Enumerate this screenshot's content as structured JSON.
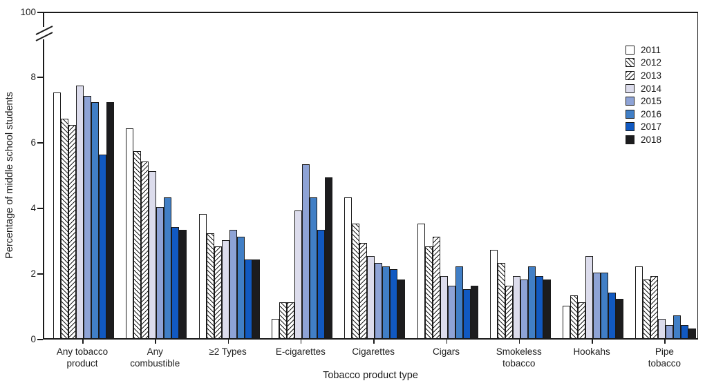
{
  "chart_data": {
    "type": "bar",
    "title": "",
    "xlabel": "Tobacco product type",
    "ylabel": "Percentage of middle school students",
    "grid": false,
    "legend_position": "upper-right-inside",
    "axis_break": true,
    "yticks": [
      "0",
      "2",
      "4",
      "6",
      "8"
    ],
    "ytick_above_break": "100",
    "ylim": [
      0,
      8
    ],
    "categories": [
      "Any tobacco product",
      "Any combustible",
      "≥2 Types",
      "E-cigarettes",
      "Cigarettes",
      "Cigars",
      "Smokeless tobacco",
      "Hookahs",
      "Pipe tobacco"
    ],
    "categories_display": [
      "Any tobacco\nproduct",
      "Any\ncombustible",
      "≥2 Types",
      "E-cigarettes",
      "Cigarettes",
      "Cigars",
      "Smokeless\ntobacco",
      "Hookahs",
      "Pipe\ntobacco"
    ],
    "series": [
      {
        "name": "2011",
        "fill": "#ffffff",
        "pattern": "none",
        "values": [
          7.5,
          6.4,
          3.8,
          0.6,
          4.3,
          3.5,
          2.7,
          1.0,
          2.2
        ]
      },
      {
        "name": "2012",
        "fill": "#ffffff",
        "pattern": "diag-forward",
        "values": [
          6.7,
          5.7,
          3.2,
          1.1,
          3.5,
          2.8,
          2.3,
          1.3,
          1.8
        ]
      },
      {
        "name": "2013",
        "fill": "#ffffff",
        "pattern": "diag-back",
        "values": [
          6.5,
          5.4,
          2.8,
          1.1,
          2.9,
          3.1,
          1.6,
          1.1,
          1.9
        ]
      },
      {
        "name": "2014",
        "fill": "#dcdcec",
        "pattern": "none",
        "values": [
          7.7,
          5.1,
          3.0,
          3.9,
          2.5,
          1.9,
          1.9,
          2.5,
          0.6
        ]
      },
      {
        "name": "2015",
        "fill": "#8ea3d6",
        "pattern": "none",
        "values": [
          7.4,
          4.0,
          3.3,
          5.3,
          2.3,
          1.6,
          1.8,
          2.0,
          0.4
        ]
      },
      {
        "name": "2016",
        "fill": "#417fc6",
        "pattern": "none",
        "values": [
          7.2,
          4.3,
          3.1,
          4.3,
          2.2,
          2.2,
          2.2,
          2.0,
          0.7
        ]
      },
      {
        "name": "2017",
        "fill": "#1159c1",
        "pattern": "none",
        "values": [
          5.6,
          3.4,
          2.4,
          3.3,
          2.1,
          1.5,
          1.9,
          1.4,
          0.4
        ]
      },
      {
        "name": "2018",
        "fill": "#1c1c1e",
        "pattern": "none",
        "values": [
          7.2,
          3.3,
          2.4,
          4.9,
          1.8,
          1.6,
          1.8,
          1.2,
          0.3
        ]
      }
    ],
    "colors": {
      "axis": "#1a1a1a",
      "text": "#1a1a1a",
      "background": "#ffffff"
    }
  }
}
